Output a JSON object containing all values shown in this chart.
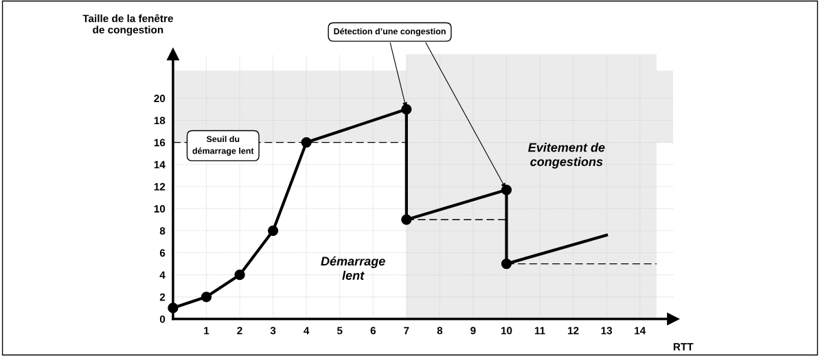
{
  "chart_data": {
    "type": "line",
    "xlabel": "RTT",
    "ylabel": "Taille de la fenêtre\nde congestion",
    "xlim": [
      0,
      15
    ],
    "ylim": [
      0,
      24
    ],
    "xticks": [
      1,
      2,
      3,
      4,
      5,
      6,
      7,
      8,
      9,
      10,
      11,
      12,
      13,
      14
    ],
    "yticks": [
      0,
      2,
      4,
      6,
      8,
      10,
      12,
      14,
      16,
      18,
      20
    ],
    "grid": true,
    "marker": "circle",
    "series": [
      {
        "color": "#000000",
        "x": [
          0,
          1,
          2,
          3,
          4,
          7,
          7,
          10,
          10
        ],
        "values": [
          1,
          2,
          4,
          8,
          16,
          19,
          9,
          11.7,
          5
        ]
      },
      {
        "color": "#000000",
        "marker": "none",
        "x": [
          10,
          13
        ],
        "values": [
          5,
          7.6
        ]
      },
      {
        "color": "#000000",
        "marker": "none",
        "line_style": "dashed",
        "x": [
          0,
          7
        ],
        "values": [
          16,
          16
        ]
      },
      {
        "color": "#000000",
        "marker": "none",
        "line_style": "dashed",
        "x": [
          7,
          10
        ],
        "values": [
          9,
          9
        ]
      },
      {
        "color": "#000000",
        "marker": "none",
        "line_style": "dashed",
        "x": [
          10,
          14.5
        ],
        "values": [
          5,
          5
        ]
      }
    ],
    "bands": [
      {
        "axis": "y",
        "from": 16,
        "to": 22.5,
        "color": "#ebebeb"
      },
      {
        "axis": "x",
        "from": 7,
        "to": 14.5,
        "color": "#ebebeb"
      }
    ],
    "annotations": [
      {
        "text": "Seuil du\ndémarrage lent",
        "x": 2,
        "y": 16
      },
      {
        "text": "Détection d’une congestion",
        "x": 7,
        "y": 19
      },
      "Démarrage\nlent",
      "Evitement de\ncongestions"
    ]
  }
}
